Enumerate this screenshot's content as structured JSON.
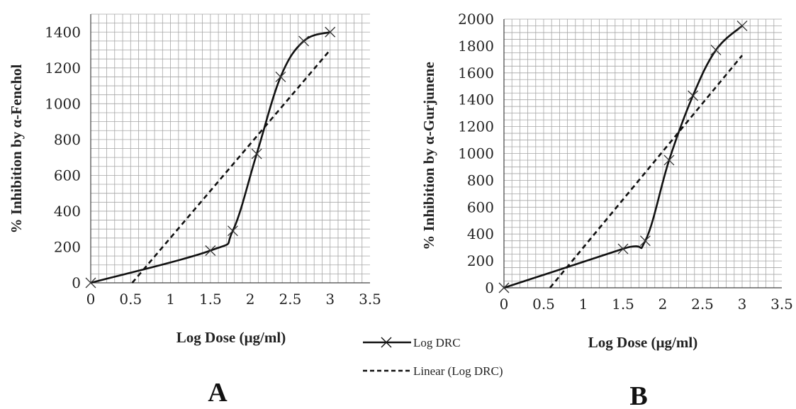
{
  "chart_data": [
    {
      "panel": "A",
      "type": "line",
      "xlabel": "Log Dose (µg/ml)",
      "ylabel": "% Inhibition  by α-Fenchol",
      "xlim": [
        0,
        3.5
      ],
      "ylim": [
        0,
        1500
      ],
      "x_ticks": [
        "0",
        "0.5",
        "1",
        "1.5",
        "2",
        "2.5",
        "3",
        "3.5"
      ],
      "y_ticks": [
        "0",
        "200",
        "400",
        "600",
        "800",
        "1000",
        "1200",
        "1400"
      ],
      "grid": true,
      "series": [
        {
          "name": "Log DRC",
          "style": "solid",
          "marker": "x",
          "x": [
            0,
            1.5,
            1.78,
            2.08,
            2.38,
            2.67,
            3.0
          ],
          "y": [
            0,
            180,
            290,
            720,
            1150,
            1350,
            1400
          ]
        },
        {
          "name": "Linear (Log DRC)",
          "style": "dashed",
          "marker": "none",
          "x": [
            0.52,
            3.0
          ],
          "y": [
            0,
            1300
          ]
        }
      ]
    },
    {
      "panel": "B",
      "type": "line",
      "xlabel": "Log Dose (µg/ml)",
      "ylabel": "% Inhibition  by α-Gurjunene",
      "xlim": [
        0,
        3.5
      ],
      "ylim": [
        0,
        2000
      ],
      "x_ticks": [
        "0",
        "0.5",
        "1",
        "1.5",
        "2",
        "2.5",
        "3",
        "3.5"
      ],
      "y_ticks": [
        "0",
        "200",
        "400",
        "600",
        "800",
        "1000",
        "1200",
        "1400",
        "1600",
        "1800",
        "2000"
      ],
      "grid": true,
      "series": [
        {
          "name": "Log DRC",
          "style": "solid",
          "marker": "x",
          "x": [
            0,
            1.5,
            1.78,
            2.08,
            2.38,
            2.67,
            3.0
          ],
          "y": [
            0,
            290,
            350,
            950,
            1430,
            1770,
            1950
          ]
        },
        {
          "name": "Linear (Log DRC)",
          "style": "dashed",
          "marker": "none",
          "x": [
            0.58,
            3.0
          ],
          "y": [
            0,
            1730
          ]
        }
      ]
    }
  ],
  "legend": {
    "items": [
      {
        "label": "Log DRC",
        "style": "solid",
        "marker": "x"
      },
      {
        "label": "Linear (Log DRC)",
        "style": "dashed",
        "marker": "none"
      }
    ]
  },
  "panel_labels": {
    "a": "A",
    "b": "B"
  },
  "colors": {
    "line": "#111111",
    "grid": "#a6a6a6",
    "axis": "#444444"
  }
}
